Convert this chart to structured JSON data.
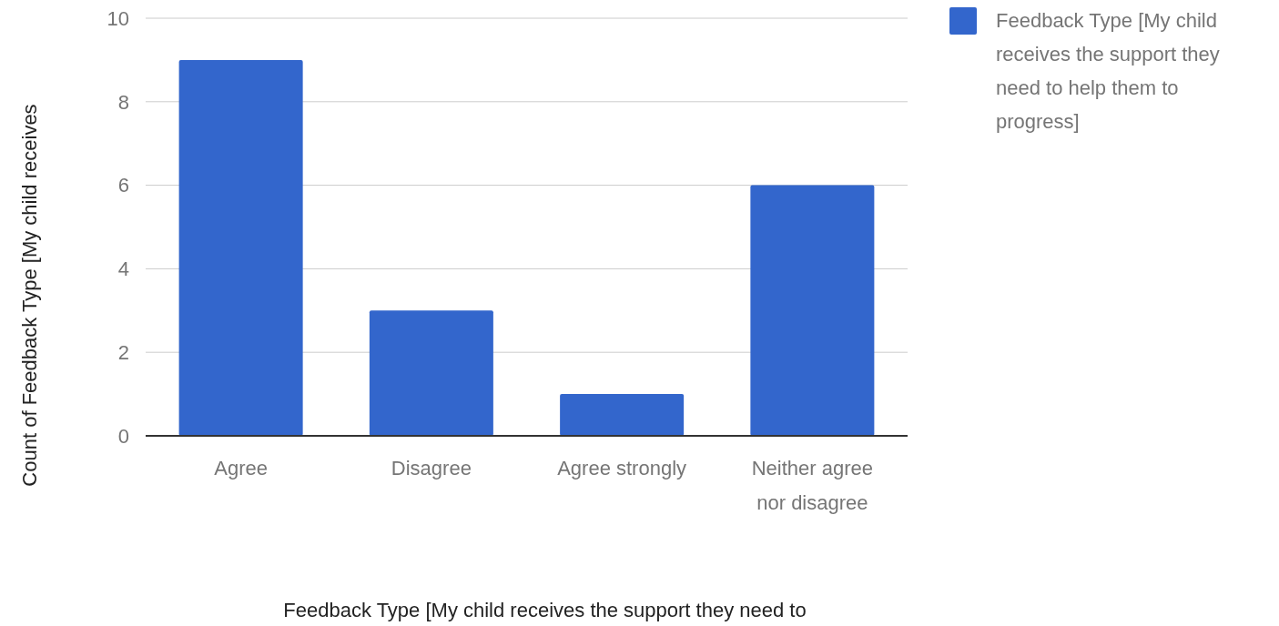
{
  "chart_data": {
    "type": "bar",
    "xlabel": "Feedback Type [My child receives the support they need to",
    "ylabel": "Count of Feedback Type [My child receives",
    "categories": [
      "Agree",
      "Disagree",
      "Agree strongly",
      "Neither agree nor disagree"
    ],
    "series": [
      {
        "name": "Feedback Type [My child receives the support they need to help them to progress]",
        "color": "#3366cc",
        "values": [
          9,
          3,
          1,
          6
        ]
      }
    ],
    "ylim": [
      0,
      10
    ],
    "yticks": [
      0,
      2,
      4,
      6,
      8,
      10
    ],
    "grid": "y",
    "legend": "top right"
  }
}
